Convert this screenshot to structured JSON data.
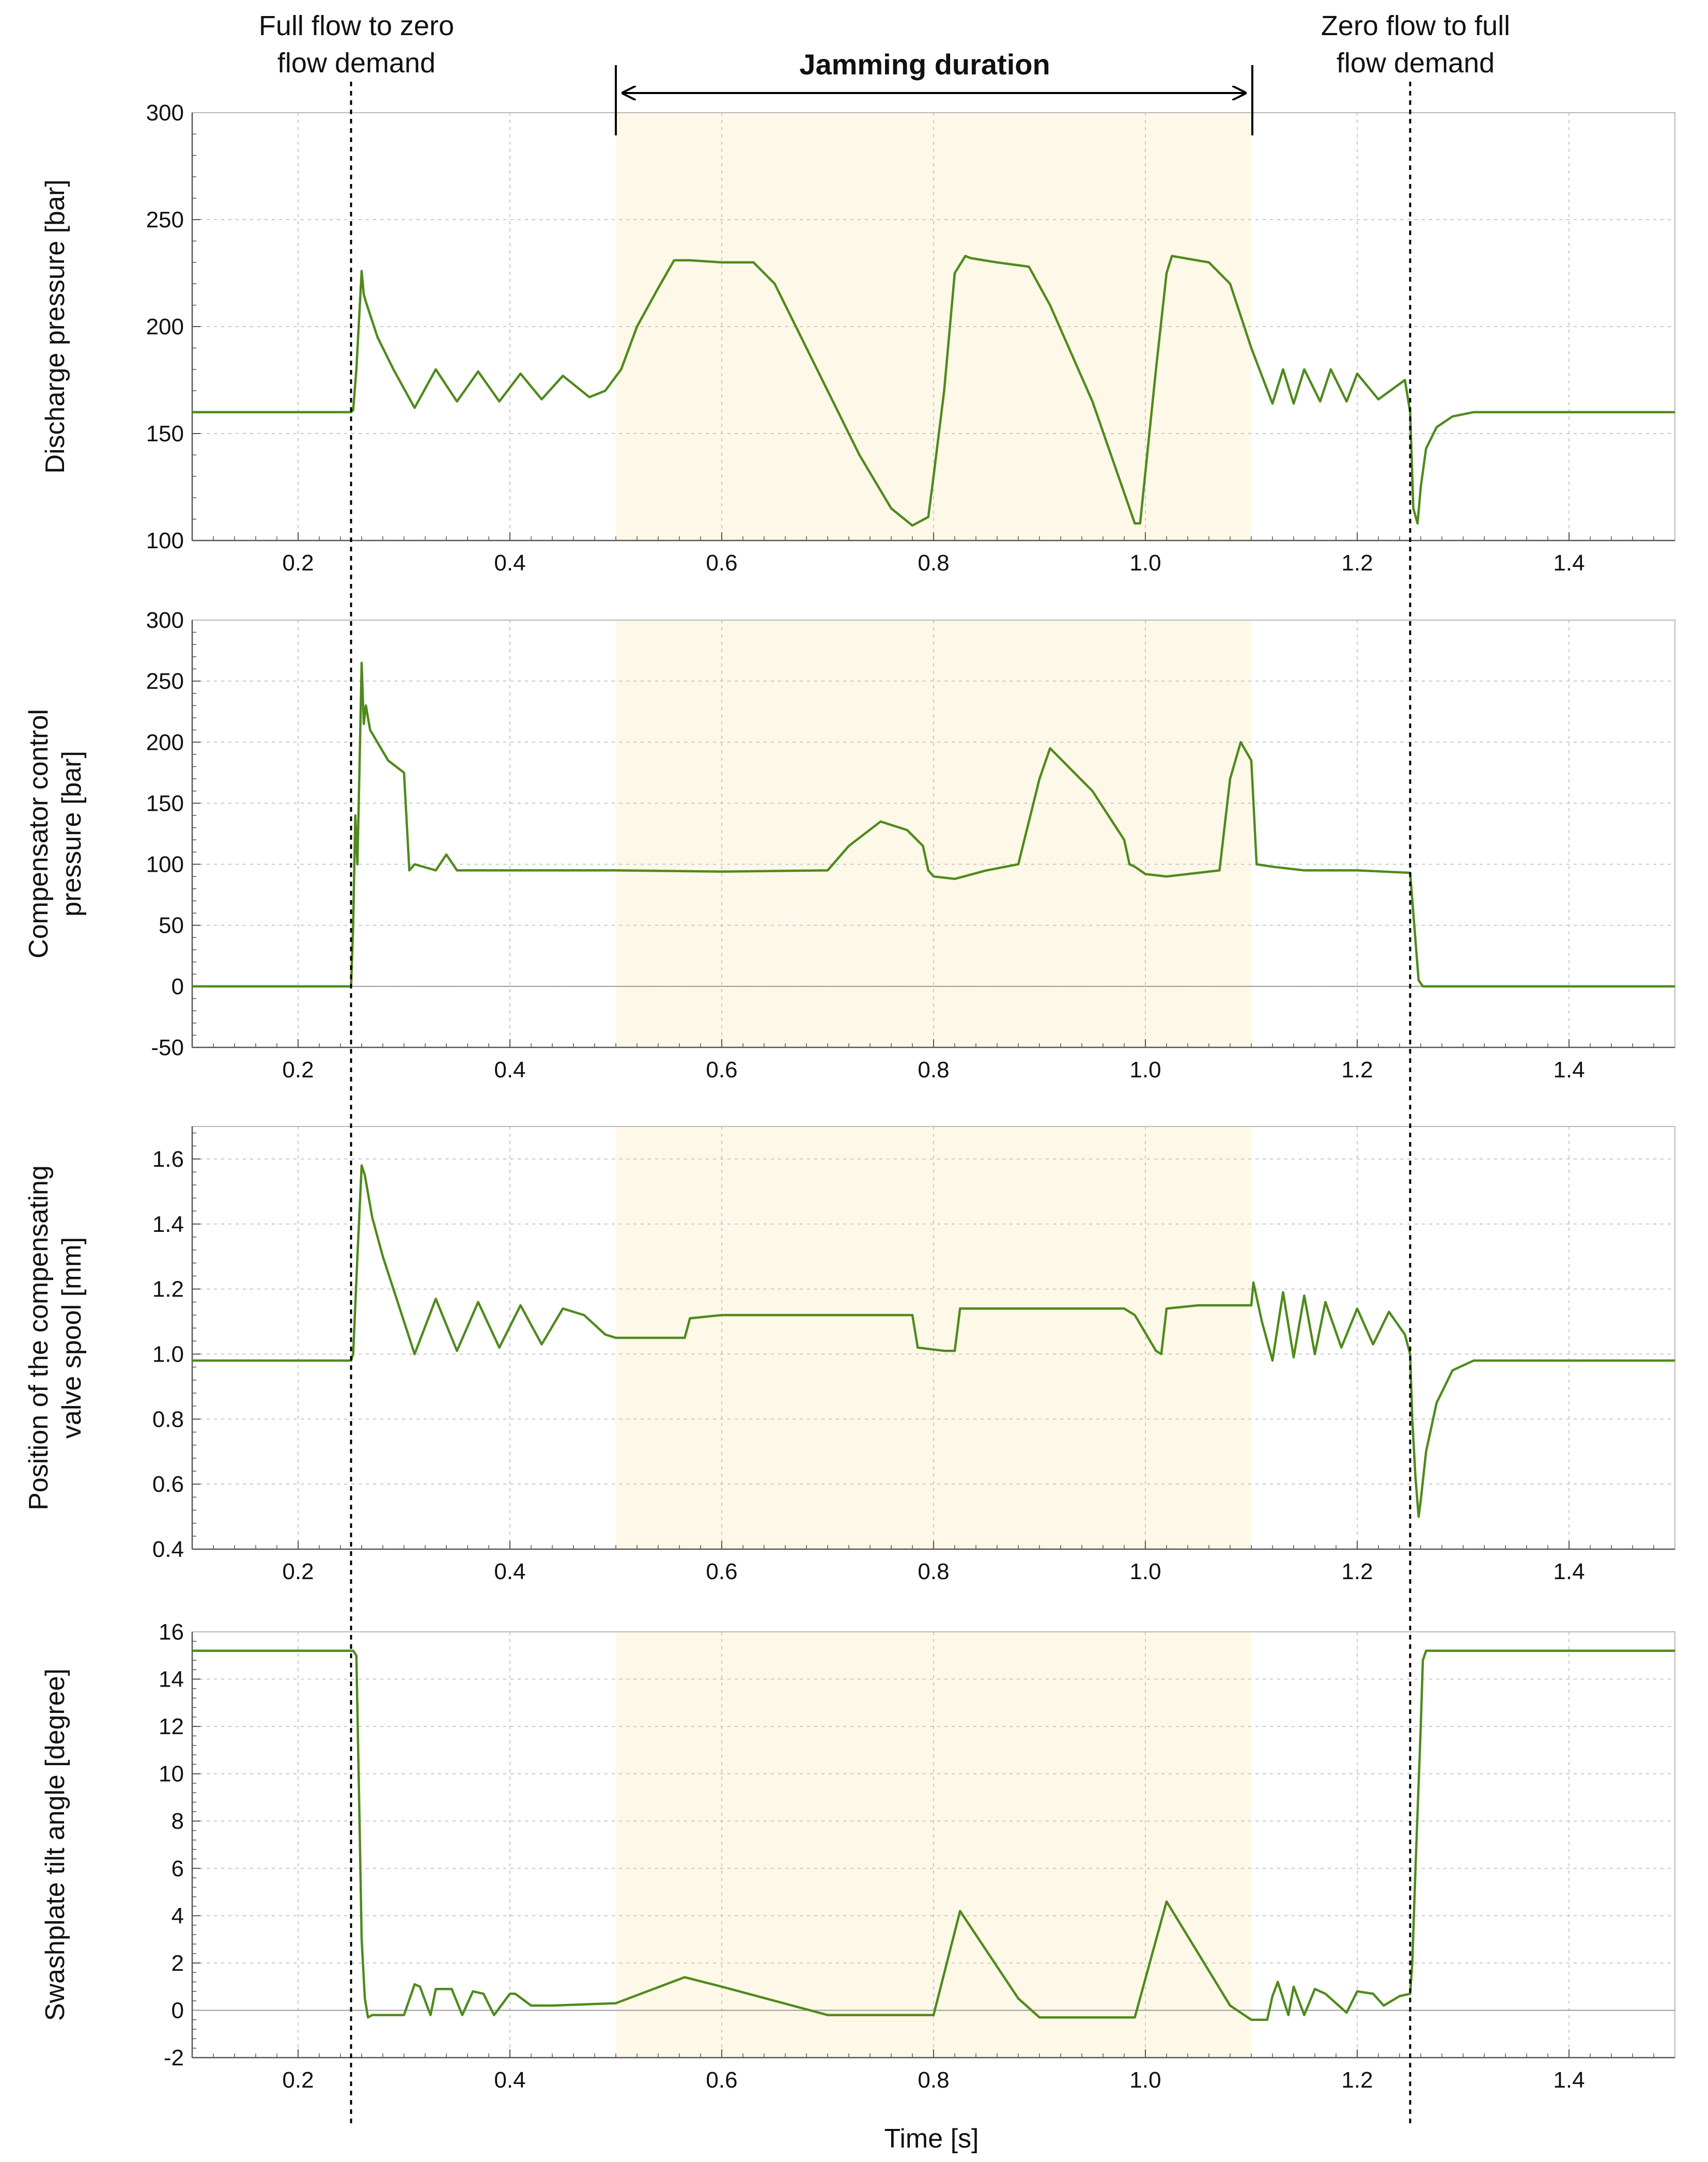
{
  "colors": {
    "series": "#4f8a1c",
    "jam_band": "#fdf8e7",
    "grid": "#c8c8c8",
    "axis": "#555555",
    "marker": "#000000"
  },
  "annotations": {
    "event_left": [
      "Full flow to zero",
      "flow demand"
    ],
    "event_right": [
      "Zero flow to full",
      "flow demand"
    ],
    "jamming": "Jamming duration"
  },
  "chart_data": {
    "type": "line",
    "shared_x": {
      "label": "Time [s]",
      "range": [
        0.1,
        1.5
      ],
      "ticks": [
        0.2,
        0.4,
        0.6,
        0.8,
        1.0,
        1.2,
        1.4
      ],
      "tick_labels": [
        "0.2",
        "0.4",
        "0.6",
        "0.8",
        "1.0",
        "1.2",
        "1.4"
      ]
    },
    "jamming_interval": [
      0.5,
      1.1
    ],
    "event_times": [
      0.25,
      1.25
    ],
    "panels": [
      {
        "ylabel": [
          "Discharge pressure [bar]"
        ],
        "ylim": [
          100,
          300
        ],
        "yticks": [
          100,
          150,
          200,
          250,
          300
        ],
        "ytick_labels": [
          "100",
          "150",
          "200",
          "250",
          "300"
        ],
        "zero_line": false,
        "series": {
          "name": "Discharge pressure",
          "x": [
            0.1,
            0.25,
            0.252,
            0.255,
            0.26,
            0.262,
            0.265,
            0.275,
            0.29,
            0.31,
            0.33,
            0.35,
            0.37,
            0.39,
            0.41,
            0.43,
            0.45,
            0.475,
            0.49,
            0.505,
            0.52,
            0.54,
            0.555,
            0.57,
            0.6,
            0.63,
            0.65,
            0.67,
            0.7,
            0.73,
            0.76,
            0.78,
            0.795,
            0.8,
            0.81,
            0.82,
            0.83,
            0.835,
            0.86,
            0.89,
            0.91,
            0.95,
            0.99,
            0.995,
            1.01,
            1.02,
            1.025,
            1.06,
            1.08,
            1.1,
            1.12,
            1.13,
            1.14,
            1.15,
            1.165,
            1.175,
            1.19,
            1.2,
            1.22,
            1.245,
            1.25,
            1.253,
            1.257,
            1.26,
            1.265,
            1.275,
            1.29,
            1.31,
            1.35,
            1.5
          ],
          "y": [
            160,
            160,
            161,
            180,
            226,
            215,
            210,
            195,
            180,
            162,
            180,
            165,
            179,
            165,
            178,
            166,
            177,
            167,
            170,
            180,
            200,
            218,
            231,
            231,
            230,
            230,
            220,
            200,
            170,
            140,
            115,
            107,
            111,
            130,
            170,
            225,
            233,
            232,
            230,
            228,
            210,
            165,
            108,
            108,
            180,
            225,
            233,
            230,
            220,
            190,
            164,
            180,
            164,
            180,
            165,
            180,
            165,
            178,
            166,
            175,
            160,
            115,
            108,
            125,
            143,
            153,
            158,
            160,
            160,
            160
          ]
        }
      },
      {
        "ylabel": [
          "Compensator control",
          "pressure [bar]"
        ],
        "ylim": [
          -50,
          300
        ],
        "yticks": [
          -50,
          0,
          50,
          100,
          150,
          200,
          250,
          300
        ],
        "ytick_labels": [
          "-50",
          "0",
          "50",
          "100",
          "150",
          "200",
          "250",
          "300"
        ],
        "zero_line": true,
        "series": {
          "name": "Compensator control pressure",
          "x": [
            0.1,
            0.25,
            0.252,
            0.254,
            0.256,
            0.258,
            0.26,
            0.262,
            0.264,
            0.268,
            0.285,
            0.3,
            0.305,
            0.31,
            0.33,
            0.34,
            0.35,
            0.4,
            0.5,
            0.6,
            0.7,
            0.72,
            0.75,
            0.775,
            0.79,
            0.795,
            0.8,
            0.82,
            0.85,
            0.88,
            0.9,
            0.91,
            0.95,
            0.98,
            0.985,
            0.99,
            1.0,
            1.02,
            1.07,
            1.08,
            1.09,
            1.1,
            1.105,
            1.12,
            1.15,
            1.2,
            1.25,
            1.253,
            1.258,
            1.262,
            1.3,
            1.5
          ],
          "y": [
            0,
            0,
            50,
            140,
            100,
            180,
            265,
            215,
            230,
            210,
            185,
            175,
            95,
            100,
            95,
            108,
            95,
            95,
            95,
            94,
            95,
            115,
            135,
            128,
            115,
            95,
            90,
            88,
            95,
            100,
            170,
            195,
            160,
            120,
            100,
            98,
            92,
            90,
            95,
            170,
            200,
            185,
            100,
            98,
            95,
            95,
            93,
            60,
            5,
            0,
            0,
            0
          ]
        }
      },
      {
        "ylabel": [
          "Position of the compensating",
          "valve spool [mm]"
        ],
        "ylim": [
          0.4,
          1.7
        ],
        "yticks": [
          0.4,
          0.6,
          0.8,
          1.0,
          1.2,
          1.4,
          1.6
        ],
        "ytick_labels": [
          "0.4",
          "0.6",
          "0.8",
          "1.0",
          "1.2",
          "1.4",
          "1.6"
        ],
        "zero_line": false,
        "series": {
          "name": "Compensating valve spool position",
          "x": [
            0.1,
            0.25,
            0.252,
            0.256,
            0.26,
            0.263,
            0.27,
            0.28,
            0.3,
            0.31,
            0.33,
            0.35,
            0.37,
            0.39,
            0.41,
            0.43,
            0.45,
            0.47,
            0.49,
            0.5,
            0.565,
            0.57,
            0.6,
            0.65,
            0.7,
            0.75,
            0.78,
            0.785,
            0.81,
            0.82,
            0.825,
            0.87,
            0.93,
            0.98,
            0.99,
            1.01,
            1.015,
            1.02,
            1.05,
            1.1,
            1.102,
            1.11,
            1.12,
            1.13,
            1.14,
            1.15,
            1.16,
            1.17,
            1.185,
            1.2,
            1.215,
            1.23,
            1.245,
            1.25,
            1.252,
            1.255,
            1.258,
            1.26,
            1.265,
            1.275,
            1.29,
            1.31,
            1.35,
            1.5
          ],
          "y": [
            0.98,
            0.98,
            1.0,
            1.3,
            1.58,
            1.55,
            1.42,
            1.3,
            1.1,
            1.0,
            1.17,
            1.01,
            1.16,
            1.02,
            1.15,
            1.03,
            1.14,
            1.12,
            1.06,
            1.05,
            1.05,
            1.11,
            1.12,
            1.12,
            1.12,
            1.12,
            1.12,
            1.02,
            1.01,
            1.01,
            1.14,
            1.14,
            1.14,
            1.14,
            1.12,
            1.01,
            1.0,
            1.14,
            1.15,
            1.15,
            1.22,
            1.1,
            0.98,
            1.19,
            0.99,
            1.18,
            1.0,
            1.16,
            1.02,
            1.14,
            1.03,
            1.13,
            1.06,
            1.0,
            0.8,
            0.62,
            0.5,
            0.55,
            0.7,
            0.85,
            0.95,
            0.98,
            0.98,
            0.98
          ]
        }
      },
      {
        "ylabel": [
          "Swashplate tilt angle [degree]"
        ],
        "ylim": [
          -2,
          16
        ],
        "yticks": [
          -2,
          0,
          2,
          4,
          6,
          8,
          10,
          12,
          14,
          16
        ],
        "ytick_labels": [
          "-2",
          "0",
          "2",
          "4",
          "6",
          "8",
          "10",
          "12",
          "14",
          "16"
        ],
        "zero_line": true,
        "series": {
          "name": "Swashplate tilt angle",
          "x": [
            0.1,
            0.252,
            0.255,
            0.258,
            0.26,
            0.263,
            0.266,
            0.27,
            0.3,
            0.31,
            0.315,
            0.325,
            0.33,
            0.345,
            0.355,
            0.365,
            0.375,
            0.385,
            0.4,
            0.405,
            0.42,
            0.425,
            0.44,
            0.5,
            0.565,
            0.6,
            0.7,
            0.77,
            0.8,
            0.825,
            0.88,
            0.9,
            0.95,
            0.99,
            1.02,
            1.08,
            1.1,
            1.115,
            1.12,
            1.125,
            1.135,
            1.14,
            1.15,
            1.16,
            1.17,
            1.19,
            1.2,
            1.215,
            1.225,
            1.24,
            1.25,
            1.252,
            1.255,
            1.26,
            1.262,
            1.265,
            1.3,
            1.5
          ],
          "y": [
            15.2,
            15.2,
            15,
            8,
            3,
            0.5,
            -0.3,
            -0.2,
            -0.2,
            1.1,
            1.0,
            -0.2,
            0.9,
            0.9,
            -0.2,
            0.8,
            0.7,
            -0.2,
            0.7,
            0.7,
            0.2,
            0.2,
            0.2,
            0.3,
            1.4,
            1.0,
            -0.2,
            -0.2,
            -0.2,
            4.2,
            0.5,
            -0.3,
            -0.3,
            -0.3,
            4.6,
            0.2,
            -0.4,
            -0.4,
            0.6,
            1.2,
            -0.2,
            1.0,
            -0.2,
            0.9,
            0.7,
            -0.1,
            0.8,
            0.7,
            0.2,
            0.6,
            0.7,
            2,
            6,
            12,
            14.8,
            15.2,
            15.2,
            15.2
          ]
        }
      }
    ]
  }
}
